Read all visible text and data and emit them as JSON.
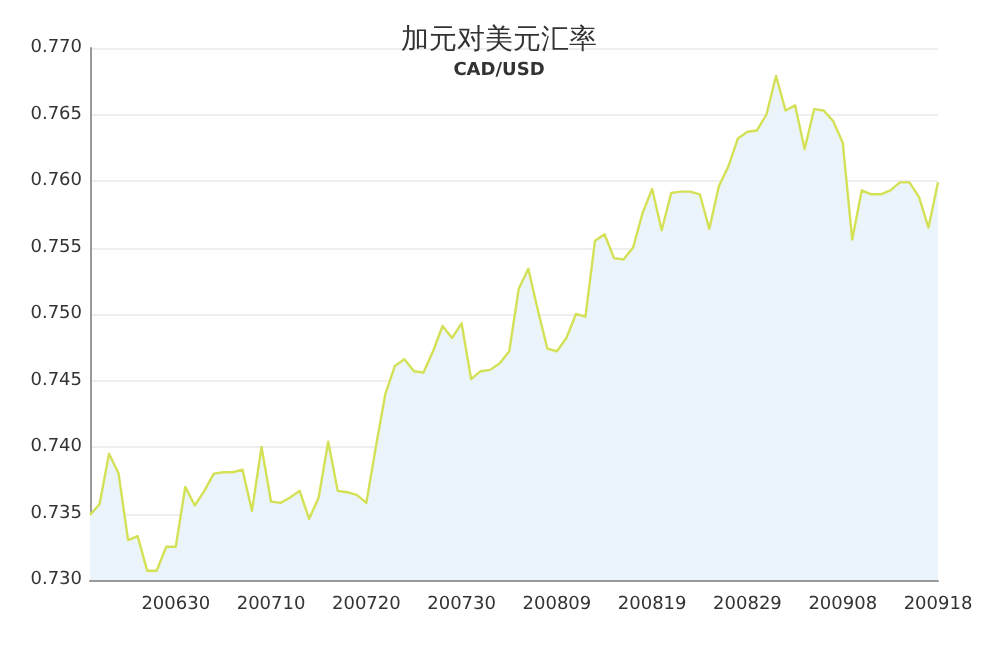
{
  "chart_data": {
    "type": "area",
    "title": "加元对美元汇率",
    "subtitle": "CAD/USD",
    "categories": [
      null,
      null,
      null,
      null,
      null,
      null,
      null,
      null,
      null,
      "200630",
      null,
      null,
      null,
      null,
      null,
      null,
      null,
      null,
      null,
      "200710",
      null,
      null,
      null,
      null,
      null,
      null,
      null,
      null,
      null,
      "200720",
      null,
      null,
      null,
      null,
      null,
      null,
      null,
      null,
      null,
      "200730",
      null,
      null,
      null,
      null,
      null,
      null,
      null,
      null,
      null,
      "200809",
      null,
      null,
      null,
      null,
      null,
      null,
      null,
      null,
      null,
      "200819",
      null,
      null,
      null,
      null,
      null,
      null,
      null,
      null,
      null,
      "200829",
      null,
      null,
      null,
      null,
      null,
      null,
      null,
      null,
      null,
      "200908",
      null,
      null,
      null,
      null,
      null,
      null,
      null,
      null,
      null,
      "200918"
    ],
    "series": [
      {
        "color": "#d4e157",
        "values": [
          0.7349,
          0.7357,
          0.7395,
          0.738,
          0.733,
          0.7333,
          0.7307,
          0.7307,
          0.7325,
          0.7325,
          0.737,
          0.7356,
          0.7367,
          0.738,
          0.7381,
          0.7381,
          0.7383,
          0.7352,
          0.74,
          0.7359,
          0.7358,
          0.7362,
          0.7367,
          0.7346,
          0.7362,
          0.7404,
          0.7367,
          0.7366,
          0.7364,
          0.7358,
          0.74,
          0.744,
          0.7461,
          0.7466,
          0.7457,
          0.7456,
          0.7472,
          0.7491,
          0.7482,
          0.7493,
          0.7451,
          0.7457,
          0.7458,
          0.7463,
          0.7472,
          0.7519,
          0.7534,
          0.7503,
          0.7474,
          0.7472,
          0.7482,
          0.75,
          0.7498,
          0.7555,
          0.756,
          0.7542,
          0.7541,
          0.755,
          0.7576,
          0.7594,
          0.7563,
          0.7591,
          0.7592,
          0.7592,
          0.759,
          0.7564,
          0.7596,
          0.7611,
          0.7632,
          0.7637,
          0.7638,
          0.765,
          0.7679,
          0.7653,
          0.7657,
          0.7624,
          0.7654,
          0.7653,
          0.7645,
          0.7629,
          0.7556,
          0.7593,
          0.759,
          0.759,
          0.7593,
          0.7599,
          0.7599,
          0.7588,
          0.7565,
          0.7599
        ]
      }
    ],
    "ylim": [
      0.73,
      0.77
    ],
    "yticks": [
      {
        "value": 0.73,
        "label": "0.730"
      },
      {
        "value": 0.735,
        "label": "0.735"
      },
      {
        "value": 0.74,
        "label": "0.740"
      },
      {
        "value": 0.745,
        "label": "0.745"
      },
      {
        "value": 0.75,
        "label": "0.750"
      },
      {
        "value": 0.755,
        "label": "0.755"
      },
      {
        "value": 0.76,
        "label": "0.760"
      },
      {
        "value": 0.765,
        "label": "0.765"
      },
      {
        "value": 0.77,
        "label": "0.770"
      }
    ],
    "grid": "y",
    "marker": "none",
    "line_style": "solid"
  }
}
